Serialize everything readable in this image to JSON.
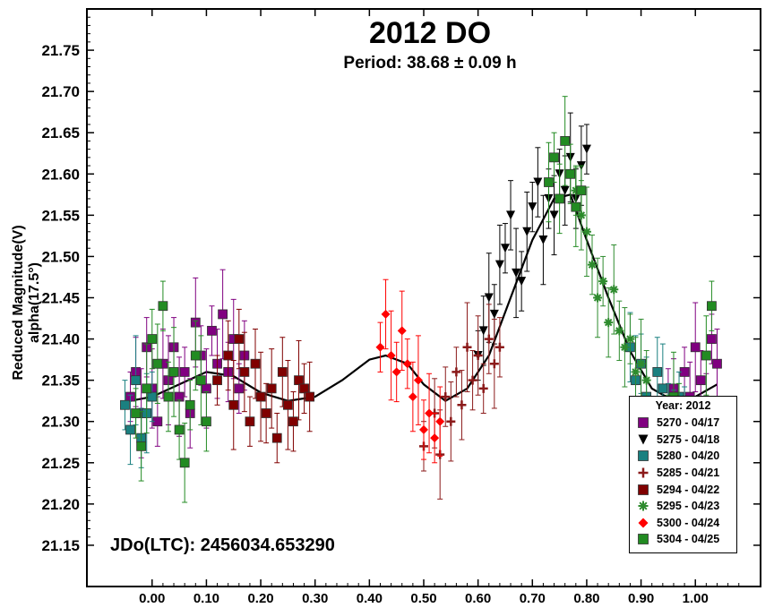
{
  "chart_data": {
    "type": "scatter",
    "title": "2012 DO",
    "subtitle": "Period: 38.68 ± 0.09 h",
    "ylabel": "Reduced Magnitude(V) alpha(17.5°)",
    "xlabel": "",
    "annotation": "JDo(LTC): 2456034.653290",
    "xlim": [
      -0.12,
      1.12
    ],
    "ylim": [
      21.8,
      21.1
    ],
    "y_inverted": true,
    "x_ticks": [
      "0.00",
      "0.10",
      "0.20",
      "0.30",
      "0.40",
      "0.50",
      "0.60",
      "0.70",
      "0.80",
      "0.90",
      "1.00"
    ],
    "y_ticks": [
      "21.15",
      "21.20",
      "21.25",
      "21.30",
      "21.35",
      "21.40",
      "21.45",
      "21.50",
      "21.55",
      "21.60",
      "21.65",
      "21.70",
      "21.75"
    ],
    "grid": false,
    "legend_title": "Year: 2012",
    "legend_position": "bottom-right",
    "fit_curve": {
      "x": [
        -0.04,
        0.0,
        0.05,
        0.1,
        0.15,
        0.2,
        0.25,
        0.3,
        0.35,
        0.4,
        0.43,
        0.47,
        0.5,
        0.54,
        0.58,
        0.62,
        0.66,
        0.7,
        0.74,
        0.77,
        0.8,
        0.84,
        0.88,
        0.92,
        0.96,
        1.0,
        1.04
      ],
      "y": [
        21.325,
        21.33,
        21.345,
        21.36,
        21.355,
        21.335,
        21.325,
        21.33,
        21.35,
        21.375,
        21.38,
        21.37,
        21.345,
        21.325,
        21.34,
        21.38,
        21.45,
        21.52,
        21.57,
        21.575,
        21.52,
        21.45,
        21.385,
        21.34,
        21.325,
        21.33,
        21.345
      ]
    },
    "series": [
      {
        "name": "5270 - 04/17",
        "marker": "square",
        "color": "#800080",
        "x": [
          -0.04,
          -0.03,
          -0.02,
          -0.01,
          0.0,
          0.01,
          0.02,
          0.03,
          0.04,
          0.05,
          0.06,
          0.07,
          0.08,
          0.09,
          0.1,
          0.11,
          0.12,
          0.13,
          0.14,
          0.15,
          0.16,
          0.17,
          0.95,
          0.96,
          0.97,
          0.98,
          0.99,
          1.0,
          1.01,
          1.02,
          1.03,
          1.04
        ],
        "y": [
          21.33,
          21.36,
          21.31,
          21.39,
          21.34,
          21.3,
          21.37,
          21.35,
          21.39,
          21.33,
          21.36,
          21.31,
          21.42,
          21.38,
          21.34,
          21.41,
          21.37,
          21.43,
          21.36,
          21.4,
          21.34,
          21.38,
          21.31,
          21.34,
          21.28,
          21.36,
          21.33,
          21.39,
          21.35,
          21.31,
          21.4,
          21.37
        ]
      },
      {
        "name": "5275 - 04/18",
        "marker": "triangle-down",
        "color": "#000000",
        "x": [
          0.6,
          0.61,
          0.62,
          0.63,
          0.64,
          0.65,
          0.66,
          0.67,
          0.68,
          0.69,
          0.7,
          0.71,
          0.72,
          0.73,
          0.74,
          0.75,
          0.76,
          0.77,
          0.78,
          0.79,
          0.8
        ],
        "y": [
          21.38,
          21.41,
          21.45,
          21.43,
          21.49,
          21.51,
          21.55,
          21.48,
          21.47,
          21.53,
          21.56,
          21.59,
          21.52,
          21.57,
          21.55,
          21.6,
          21.58,
          21.62,
          21.57,
          21.61,
          21.63
        ]
      },
      {
        "name": "5280 - 04/20",
        "marker": "square",
        "color": "#1a8080",
        "x": [
          -0.05,
          -0.04,
          -0.03,
          -0.02,
          -0.01,
          0.0,
          0.88,
          0.89,
          0.9,
          0.91,
          0.92,
          0.93,
          0.94,
          0.95,
          0.96,
          0.97,
          0.98
        ],
        "y": [
          21.32,
          21.29,
          21.35,
          21.28,
          21.31,
          21.33,
          21.39,
          21.35,
          21.37,
          21.33,
          21.3,
          21.36,
          21.34,
          21.31,
          21.29,
          21.33,
          21.3
        ]
      },
      {
        "name": "5285 - 04/21",
        "marker": "plus",
        "color": "#8b1a1a",
        "x": [
          0.5,
          0.52,
          0.53,
          0.54,
          0.55,
          0.56,
          0.57,
          0.58,
          0.59,
          0.6,
          0.61,
          0.62,
          0.63,
          0.64
        ],
        "y": [
          21.27,
          21.31,
          21.26,
          21.33,
          21.3,
          21.36,
          21.32,
          21.39,
          21.35,
          21.38,
          21.34,
          21.4,
          21.37,
          21.39
        ]
      },
      {
        "name": "5294 - 04/22",
        "marker": "square",
        "color": "#800000",
        "x": [
          0.12,
          0.14,
          0.15,
          0.16,
          0.17,
          0.18,
          0.19,
          0.2,
          0.21,
          0.22,
          0.23,
          0.24,
          0.25,
          0.26,
          0.27,
          0.28,
          0.29
        ],
        "y": [
          21.35,
          21.38,
          21.32,
          21.4,
          21.36,
          21.3,
          21.37,
          21.33,
          21.31,
          21.34,
          21.28,
          21.36,
          21.32,
          21.3,
          21.35,
          21.34,
          21.33
        ]
      },
      {
        "name": "5295 - 04/23",
        "marker": "asterisk",
        "color": "#2e8b2e",
        "x": [
          0.78,
          0.79,
          0.8,
          0.81,
          0.82,
          0.83,
          0.84,
          0.85,
          0.86,
          0.87,
          0.88,
          0.89,
          0.9,
          0.91
        ],
        "y": [
          21.58,
          21.55,
          21.53,
          21.49,
          21.45,
          21.47,
          21.42,
          21.46,
          21.41,
          21.39,
          21.4,
          21.36,
          21.37,
          21.35
        ]
      },
      {
        "name": "5300 - 04/24",
        "marker": "diamond",
        "color": "#ff0000",
        "x": [
          0.42,
          0.43,
          0.44,
          0.45,
          0.46,
          0.47,
          0.48,
          0.49,
          0.5,
          0.51,
          0.52,
          0.53
        ],
        "y": [
          21.39,
          21.43,
          21.38,
          21.36,
          21.41,
          21.37,
          21.33,
          21.35,
          21.29,
          21.31,
          21.28,
          21.3
        ]
      },
      {
        "name": "5304 - 04/25",
        "marker": "square",
        "color": "#228b22",
        "x": [
          -0.03,
          -0.02,
          -0.01,
          0.0,
          0.01,
          0.02,
          0.03,
          0.04,
          0.05,
          0.06,
          0.07,
          0.08,
          0.09,
          0.1,
          0.73,
          0.74,
          0.75,
          0.76,
          0.77,
          0.78,
          0.79,
          0.95,
          0.96,
          0.97,
          1.02,
          1.03
        ],
        "y": [
          21.31,
          21.27,
          21.34,
          21.4,
          21.37,
          21.44,
          21.33,
          21.36,
          21.29,
          21.25,
          21.32,
          21.38,
          21.35,
          21.3,
          21.59,
          21.62,
          21.57,
          21.64,
          21.6,
          21.56,
          21.58,
          21.29,
          21.33,
          21.31,
          21.38,
          21.44
        ]
      }
    ]
  }
}
